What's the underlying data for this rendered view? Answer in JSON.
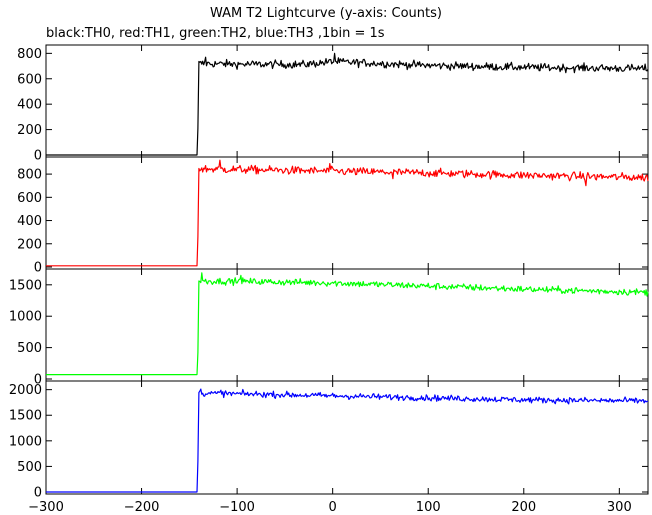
{
  "chart_data": {
    "type": "line",
    "title": "WAM T2 Lightcurve (y-axis: Counts)",
    "subtitle": "black:TH0, red:TH1, green:TH2, blue:TH3 ,1bin = 1s",
    "xlim": [
      -300,
      330
    ],
    "x_ticks": [
      -300,
      -200,
      -100,
      0,
      100,
      200,
      300
    ],
    "x_tick_labels": [
      "−300",
      "−200",
      "−100",
      "0",
      "100",
      "200",
      "300"
    ],
    "x_step": 1,
    "trigger_x": -141,
    "grid": false,
    "panels": [
      {
        "series": "TH0",
        "color": "#000000",
        "ylim": [
          0,
          850
        ],
        "y_ticks": [
          0,
          200,
          400,
          600,
          800
        ],
        "pre_level": 0,
        "rise_value": 210,
        "shape": [
          [
            -140,
            720
          ],
          [
            -100,
            715
          ],
          [
            -30,
            712
          ],
          [
            0,
            735
          ],
          [
            100,
            705
          ],
          [
            200,
            690
          ],
          [
            330,
            680
          ]
        ],
        "noise": 22,
        "spikes": [
          [
            -133,
            770
          ],
          [
            2,
            800
          ]
        ]
      },
      {
        "series": "TH1",
        "color": "#ff0000",
        "ylim": [
          0,
          930
        ],
        "y_ticks": [
          0,
          200,
          400,
          600,
          800
        ],
        "pre_level": 10,
        "rise_value": 260,
        "shape": [
          [
            -140,
            845
          ],
          [
            -100,
            840
          ],
          [
            0,
            825
          ],
          [
            100,
            810
          ],
          [
            200,
            790
          ],
          [
            330,
            770
          ]
        ],
        "noise": 25,
        "spikes": [
          [
            -118,
            920
          ],
          [
            -3,
            890
          ],
          [
            265,
            700
          ],
          [
            63,
            760
          ]
        ]
      },
      {
        "series": "TH2",
        "color": "#00ff00",
        "ylim": [
          0,
          1720
        ],
        "y_ticks": [
          0,
          500,
          1000,
          1500
        ],
        "y_tick_labels": [
          "0",
          "500",
          "1000",
          "1500"
        ],
        "pre_level": 70,
        "rise_value": 420,
        "shape": [
          [
            -140,
            1560
          ],
          [
            -100,
            1555
          ],
          [
            0,
            1530
          ],
          [
            100,
            1480
          ],
          [
            200,
            1430
          ],
          [
            330,
            1380
          ]
        ],
        "noise": 38,
        "spikes": [
          [
            -137,
            1690
          ],
          [
            -96,
            1650
          ]
        ]
      },
      {
        "series": "TH3",
        "color": "#0000ff",
        "ylim": [
          0,
          2130
        ],
        "y_ticks": [
          0,
          500,
          1000,
          1500,
          2000
        ],
        "y_tick_labels": [
          "0",
          "500",
          "1000",
          "1500",
          "2000"
        ],
        "pre_level": 0,
        "rise_value": 600,
        "shape": [
          [
            -140,
            1930
          ],
          [
            -100,
            1920
          ],
          [
            0,
            1880
          ],
          [
            100,
            1840
          ],
          [
            200,
            1800
          ],
          [
            330,
            1780
          ]
        ],
        "noise": 42,
        "spikes": [
          [
            -138,
            2010
          ],
          [
            -117,
            1990
          ]
        ]
      }
    ]
  }
}
